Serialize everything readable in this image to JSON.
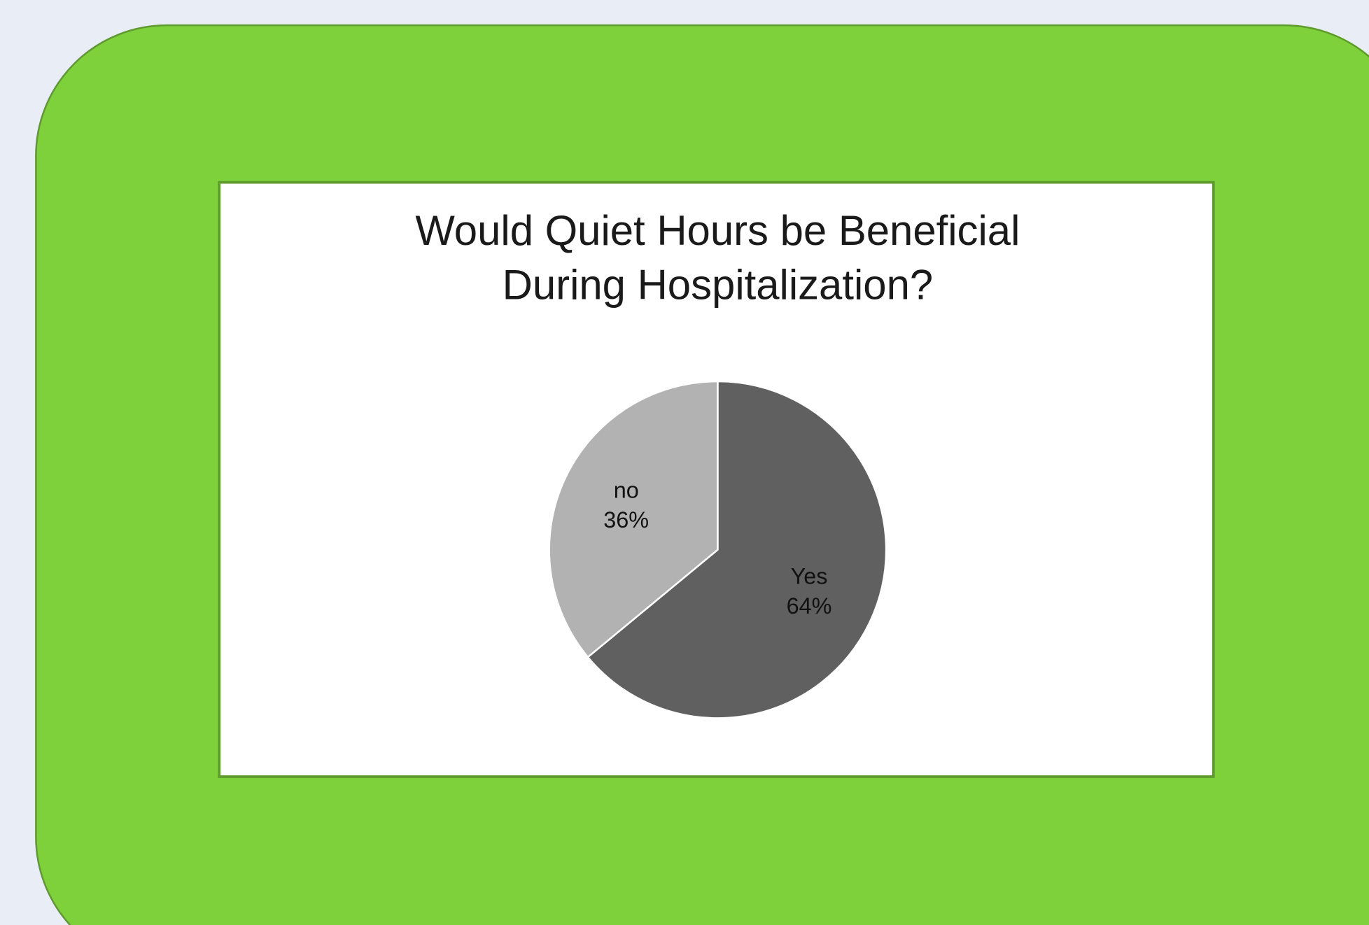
{
  "chart_data": {
    "type": "pie",
    "title": [
      "Would Quiet Hours be Beneficial",
      "During Hospitalization?"
    ],
    "categories": [
      "Yes",
      "no"
    ],
    "values": [
      64,
      36
    ],
    "value_labels": [
      "64%",
      "36%"
    ],
    "colors": [
      "#606060",
      "#b2b2b2"
    ]
  }
}
